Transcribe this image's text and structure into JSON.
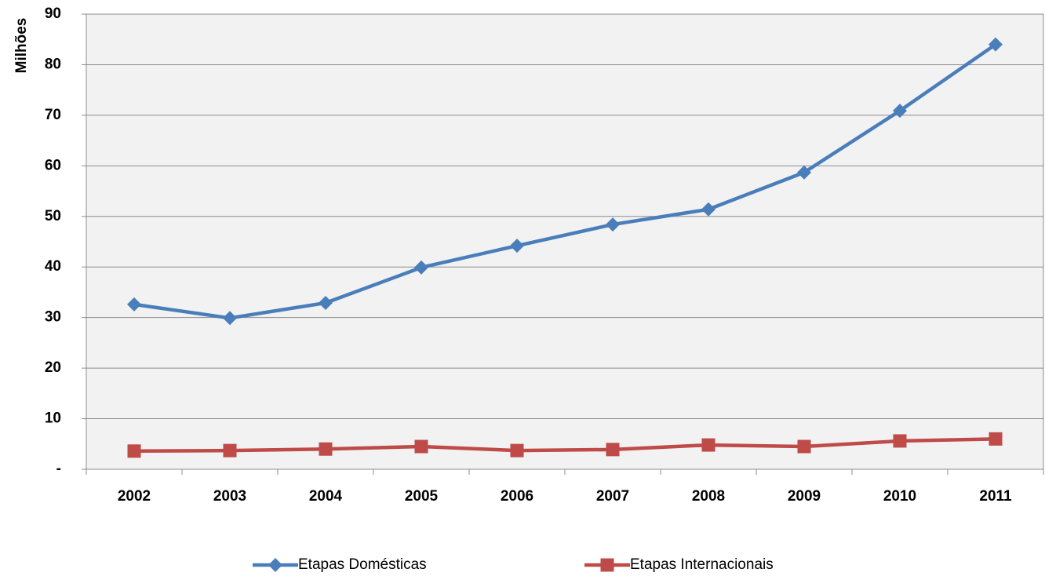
{
  "chart_data": {
    "type": "line",
    "y_label": "Milhões",
    "categories": [
      "2002",
      "2003",
      "2004",
      "2005",
      "2006",
      "2007",
      "2008",
      "2009",
      "2010",
      "2011"
    ],
    "series": [
      {
        "name": "Etapas Domésticas",
        "color": "#4a7ebb",
        "marker": "diamond",
        "values": [
          32.6,
          29.9,
          32.9,
          39.9,
          44.2,
          48.4,
          51.4,
          58.7,
          70.9,
          84.0
        ]
      },
      {
        "name": "Etapas Internacionais",
        "color": "#be4b48",
        "marker": "square",
        "values": [
          3.6,
          3.7,
          4.0,
          4.5,
          3.7,
          3.9,
          4.8,
          4.5,
          5.6,
          6.0
        ]
      }
    ],
    "ylim": [
      0,
      90
    ],
    "yticks": [
      {
        "value": 0,
        "label": "-"
      },
      10,
      20,
      30,
      40,
      50,
      60,
      70,
      80,
      90
    ],
    "grid": true,
    "legend": "bottom"
  }
}
